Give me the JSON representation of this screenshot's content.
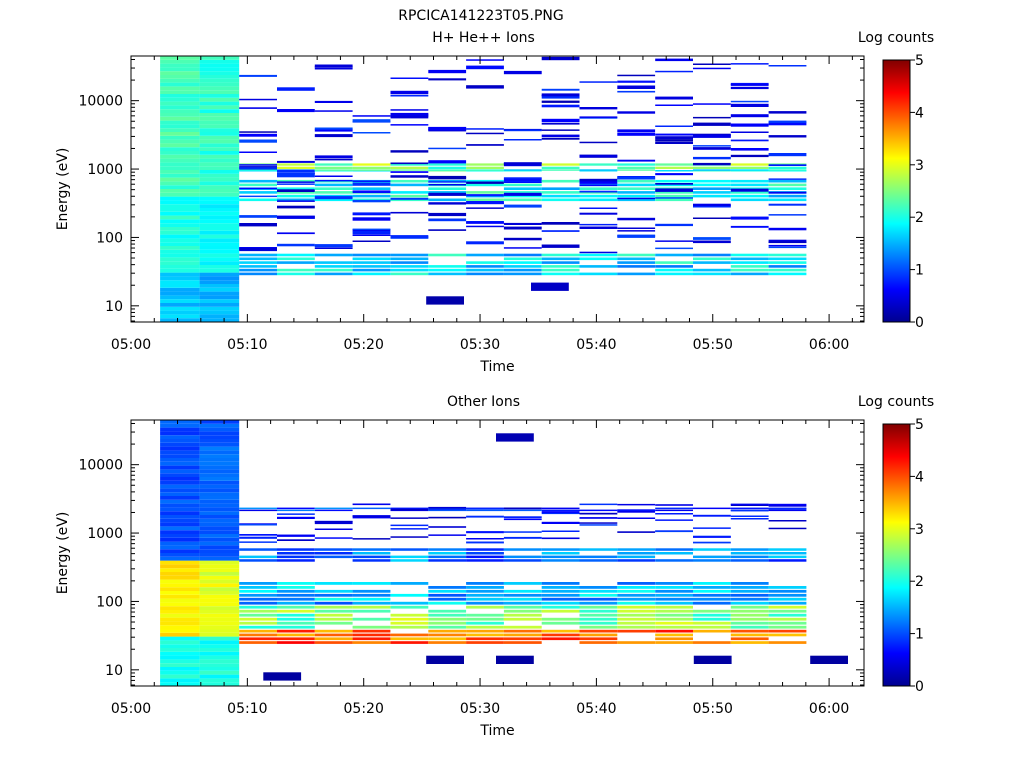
{
  "figure": {
    "title": "RPCICA141223T05.PNG"
  },
  "chart_data": [
    {
      "type": "heatmap",
      "title": "H+ He++ Ions",
      "xlabel": "Time",
      "ylabel": "Energy (eV)",
      "x_ticks": [
        "05:00",
        "05:10",
        "05:20",
        "05:30",
        "05:40",
        "05:50",
        "06:00"
      ],
      "x_range": [
        "05:00",
        "06:03"
      ],
      "y_scale": "log",
      "y_ticks": [
        10,
        100,
        1000,
        10000
      ],
      "y_range": [
        5.8,
        45000
      ],
      "colorbar": {
        "label": "Log counts",
        "range": [
          0,
          5
        ],
        "ticks": [
          0,
          1,
          2,
          3,
          4,
          5
        ]
      },
      "grid": false,
      "seed": 7,
      "early_block": {
        "start": "05:02.5",
        "end": "05:09.3",
        "levels_low": [
          1.6,
          1.5
        ],
        "levels_mid": [
          2.0,
          1.9
        ],
        "levels_high": [
          2.2,
          2.1
        ]
      },
      "bands": [
        {
          "energy_range": [
            1000,
            1250
          ],
          "level": 2.5
        },
        {
          "energy_range": [
            950,
            1000
          ],
          "level": 2.0
        },
        {
          "energy_range": [
            340,
            720
          ],
          "level": 1.9
        },
        {
          "energy_range": [
            28,
            60
          ],
          "level": 1.7
        }
      ],
      "isolated_cells": [
        {
          "time": "05:27",
          "energy": 12,
          "level": 0.15
        },
        {
          "time": "05:36",
          "energy": 19,
          "level": 0.3
        }
      ]
    },
    {
      "type": "heatmap",
      "title": "Other Ions",
      "xlabel": "Time",
      "ylabel": "Energy (eV)",
      "x_ticks": [
        "05:00",
        "05:10",
        "05:20",
        "05:30",
        "05:40",
        "05:50",
        "06:00"
      ],
      "x_range": [
        "05:00",
        "06:03"
      ],
      "y_scale": "log",
      "y_ticks": [
        10,
        100,
        1000,
        10000
      ],
      "y_range": [
        5.8,
        45000
      ],
      "colorbar": {
        "label": "Log counts",
        "range": [
          0,
          5
        ],
        "ticks": [
          0,
          1,
          2,
          3,
          4,
          5
        ]
      },
      "grid": false,
      "seed": 19,
      "early_block": {
        "start": "05:02.5",
        "end": "05:09.3",
        "levels_low": [
          2.0,
          2.0
        ],
        "levels_mid": [
          3.2,
          3.0
        ],
        "levels_high": [
          1.0,
          1.1
        ]
      },
      "bands": [
        {
          "energy_range": [
            24,
            40
          ],
          "level": 3.9
        },
        {
          "energy_range": [
            40,
            90
          ],
          "level": 2.5
        },
        {
          "energy_range": [
            90,
            200
          ],
          "level": 1.5
        },
        {
          "energy_range": [
            380,
            620
          ],
          "level": 1.2
        },
        {
          "energy_range": [
            2100,
            2400
          ],
          "level": 0.9
        }
      ],
      "isolated_cells": [
        {
          "time": "05:33",
          "energy": 25000,
          "level": 0.2
        },
        {
          "time": "05:13",
          "energy": 8,
          "level": 0.1
        },
        {
          "time": "05:27",
          "energy": 14,
          "level": 0.1
        },
        {
          "time": "05:33",
          "energy": 14,
          "level": 0.1
        },
        {
          "time": "05:50",
          "energy": 14,
          "level": 0.1
        },
        {
          "time": "06:00",
          "energy": 14,
          "level": 0.1
        }
      ]
    }
  ]
}
